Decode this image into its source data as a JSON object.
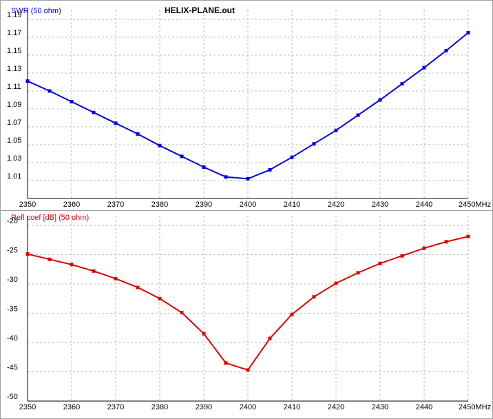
{
  "chart_data": [
    {
      "type": "line",
      "title": "HELIX-PLANE.out",
      "y_label": "SWR (50 ohm)",
      "x": [
        2350,
        2355,
        2360,
        2365,
        2370,
        2375,
        2380,
        2385,
        2390,
        2395,
        2400,
        2405,
        2410,
        2415,
        2420,
        2425,
        2430,
        2435,
        2440,
        2445,
        2450
      ],
      "values": [
        1.121,
        1.11,
        1.098,
        1.086,
        1.074,
        1.062,
        1.049,
        1.037,
        1.025,
        1.014,
        1.012,
        1.022,
        1.036,
        1.051,
        1.066,
        1.083,
        1.1,
        1.118,
        1.136,
        1.155,
        1.175
      ],
      "color": "#0000e0",
      "xlim": [
        2350,
        2450
      ],
      "xticks": [
        2350,
        2360,
        2370,
        2380,
        2390,
        2400,
        2410,
        2420,
        2430,
        2440,
        {
          "value": 2450,
          "label": "2450MHz"
        }
      ],
      "ylim": [
        0.99,
        1.19
      ],
      "yticks": [
        1.01,
        1.03,
        1.05,
        1.07,
        1.09,
        1.11,
        1.13,
        1.15,
        1.17,
        1.19
      ],
      "grid": true
    },
    {
      "type": "line",
      "y_label": "Refl coef [dB] (50 ohm)",
      "x": [
        2350,
        2355,
        2360,
        2365,
        2370,
        2375,
        2380,
        2385,
        2390,
        2395,
        2400,
        2405,
        2410,
        2415,
        2420,
        2425,
        2430,
        2435,
        2440,
        2445,
        2450
      ],
      "values": [
        -24.9,
        -25.8,
        -26.7,
        -27.8,
        -29.1,
        -30.6,
        -32.5,
        -34.9,
        -38.5,
        -43.5,
        -44.7,
        -39.3,
        -35.2,
        -32.2,
        -29.9,
        -28.1,
        -26.5,
        -25.2,
        -23.9,
        -22.8,
        -21.9
      ],
      "color": "#e00000",
      "xlim": [
        2350,
        2450
      ],
      "xticks": [
        2350,
        2360,
        2370,
        2380,
        2390,
        2400,
        2410,
        2420,
        2430,
        2440,
        {
          "value": 2450,
          "label": "2450MHz"
        }
      ],
      "ylim": [
        -50,
        -20
      ],
      "yticks": [
        -20,
        -25,
        -30,
        -35,
        -40,
        -45,
        -50
      ],
      "grid": true
    }
  ]
}
